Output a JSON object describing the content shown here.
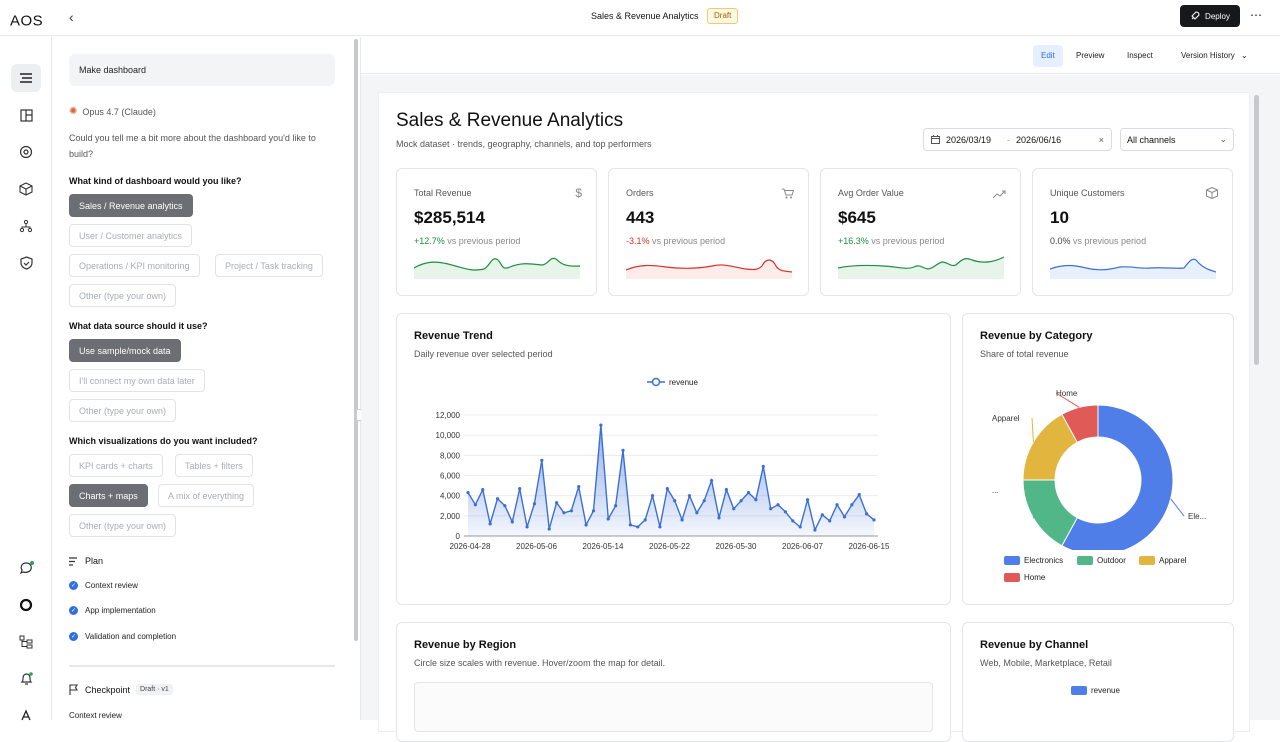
{
  "app": {
    "brand": "AOS",
    "title": "Sales & Revenue Analytics",
    "status_badge": "Draft",
    "deploy_label": "Deploy"
  },
  "chat": {
    "prompt": "Make dashboard",
    "model": "Opus 4.7 (Claude)",
    "intro": "Could you tell me a bit more about the dashboard you'd like to build?",
    "q1": "What kind of dashboard would you like?",
    "q1_options": [
      "Sales / Revenue analytics",
      "User / Customer analytics",
      "Operations / KPI monitoring",
      "Project / Task tracking",
      "Other (type your own)"
    ],
    "q2": "What data source should it use?",
    "q2_options": [
      "Use sample/mock data",
      "I'll connect my own data later",
      "Other (type your own)"
    ],
    "q3": "Which visualizations do you want included?",
    "q3_options": [
      "KPI cards + charts",
      "Tables + filters",
      "Charts + maps",
      "A mix of everything",
      "Other (type your own)"
    ],
    "plan_title": "Plan",
    "plan_items": [
      "Context review",
      "App implementation",
      "Validation and completion"
    ],
    "checkpoint_title": "Checkpoint",
    "checkpoint_badge": "Draft · v1",
    "checkpoint_sub": "Context review"
  },
  "tabs": [
    "Edit",
    "Preview",
    "Inspect",
    "Version History"
  ],
  "dashboard": {
    "title": "Sales & Revenue Analytics",
    "subtitle": "Mock dataset · trends, geography, channels, and top performers",
    "date_from": "2026/03/19",
    "date_sep": "-",
    "date_to": "2026/06/16",
    "channel_filter": "All channels",
    "kpis": [
      {
        "label": "Total Revenue",
        "value": "$285,514",
        "delta": "+12.7%",
        "vs": "vs previous period",
        "color": "#1e8e3e"
      },
      {
        "label": "Orders",
        "value": "443",
        "delta": "-3.1%",
        "vs": "vs previous period",
        "color": "#d93025"
      },
      {
        "label": "Avg Order Value",
        "value": "$645",
        "delta": "+16.3%",
        "vs": "vs previous period",
        "color": "#1e8e3e"
      },
      {
        "label": "Unique Customers",
        "value": "10",
        "delta": "0.0%",
        "vs": "vs previous period",
        "color": "#666666"
      }
    ],
    "trend": {
      "title": "Revenue Trend",
      "subtitle": "Daily revenue over selected period",
      "legend": "revenue"
    },
    "category": {
      "title": "Revenue by Category",
      "subtitle": "Share of total revenue",
      "legend": [
        "Electronics",
        "Outdoor",
        "Apparel",
        "Home"
      ],
      "callouts": [
        "Home",
        "Apparel",
        "...",
        "Ele..."
      ]
    },
    "region": {
      "title": "Revenue by Region",
      "subtitle": "Circle size scales with revenue. Hover/zoom the map for detail."
    },
    "channel": {
      "title": "Revenue by Channel",
      "subtitle": "Web, Mobile, Marketplace, Retail",
      "legend": "revenue"
    }
  },
  "chart_data": [
    {
      "type": "area",
      "title": "Revenue Trend",
      "series": [
        {
          "name": "revenue",
          "color": "#3b6fd8"
        }
      ],
      "x_ticks": [
        "2026-04-28",
        "2026-05-06",
        "2026-05-14",
        "2026-05-22",
        "2026-05-30",
        "2026-06-07",
        "2026-06-15"
      ],
      "y_ticks": [
        "0",
        "2,000",
        "4,000",
        "6,000",
        "8,000",
        "10,000",
        "12,000"
      ],
      "ylim": [
        0,
        12000
      ],
      "values": [
        4300,
        3100,
        4600,
        1200,
        3700,
        3000,
        1400,
        4700,
        900,
        3200,
        7500,
        700,
        3300,
        2300,
        2500,
        4900,
        1100,
        2500,
        11000,
        1700,
        3000,
        8500,
        1100,
        900,
        1600,
        4000,
        900,
        4700,
        3500,
        1600,
        4000,
        2300,
        3500,
        5500,
        1800,
        4600,
        2700,
        3500,
        4300,
        3600,
        6900,
        2700,
        3100,
        2400,
        1500,
        900,
        3600,
        600,
        2100,
        1500,
        3100,
        1900,
        3100,
        4100,
        2200,
        1600
      ],
      "grid": true,
      "legend": "top-center"
    },
    {
      "type": "pie",
      "title": "Revenue by Category",
      "labels": [
        "Electronics",
        "Outdoor",
        "Apparel",
        "Home"
      ],
      "values": [
        58,
        17,
        17,
        8
      ],
      "colors": [
        "#4f7ee8",
        "#52b788",
        "#e2b53f",
        "#e05a58"
      ],
      "donut": true,
      "legend": "bottom"
    }
  ]
}
